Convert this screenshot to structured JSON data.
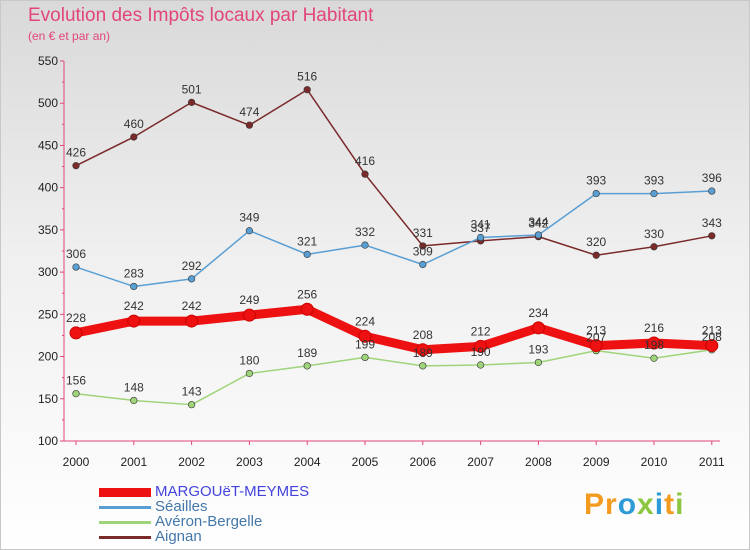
{
  "header": {
    "title": "Evolution des Impôts locaux par Habitant",
    "subtitle": "(en € et par an)"
  },
  "logo": {
    "text": "Proxiti"
  },
  "chart_data": {
    "type": "line",
    "title": "Evolution des Impôts locaux par Habitant",
    "subtitle": "(en € et par an)",
    "xlabel": "",
    "ylabel": "",
    "ylim": [
      100,
      550
    ],
    "yticks": [
      100,
      150,
      200,
      250,
      300,
      350,
      400,
      450,
      500,
      550
    ],
    "grid": false,
    "legend_position": "bottom-left",
    "categories": [
      "2000",
      "2001",
      "2002",
      "2003",
      "2004",
      "2005",
      "2006",
      "2007",
      "2008",
      "2009",
      "2010",
      "2011"
    ],
    "series": [
      {
        "name": "Aignan",
        "color": "#7b2a2a",
        "values": [
          426,
          460,
          501,
          474,
          516,
          416,
          331,
          337,
          342,
          320,
          330,
          343
        ]
      },
      {
        "name": "Séailles",
        "color": "#5a9fd4",
        "values": [
          306,
          283,
          292,
          349,
          321,
          332,
          309,
          341,
          344,
          393,
          393,
          396
        ]
      },
      {
        "name": "Avéron-Bergelle",
        "color": "#9fd47a",
        "values": [
          156,
          148,
          143,
          180,
          189,
          199,
          189,
          190,
          193,
          207,
          198,
          208
        ]
      },
      {
        "name": "MARGOUëT-MEYMES",
        "color": "#ee1111",
        "values": [
          228,
          242,
          242,
          249,
          256,
          224,
          208,
          212,
          234,
          213,
          216,
          213
        ]
      }
    ],
    "legend_order": [
      "MARGOUëT-MEYMES",
      "Séailles",
      "Avéron-Bergelle",
      "Aignan"
    ],
    "highlight_series": "MARGOUëT-MEYMES"
  }
}
